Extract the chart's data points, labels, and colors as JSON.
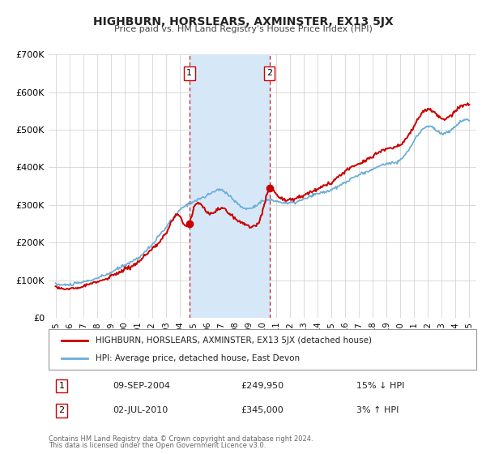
{
  "title": "HIGHBURN, HORSLEARS, AXMINSTER, EX13 5JX",
  "subtitle": "Price paid vs. HM Land Registry's House Price Index (HPI)",
  "legend_line1": "HIGHBURN, HORSLEARS, AXMINSTER, EX13 5JX (detached house)",
  "legend_line2": "HPI: Average price, detached house, East Devon",
  "footer1": "Contains HM Land Registry data © Crown copyright and database right 2024.",
  "footer2": "This data is licensed under the Open Government Licence v3.0.",
  "annotation1_label": "1",
  "annotation1_date": "09-SEP-2004",
  "annotation1_price": "£249,950",
  "annotation1_hpi": "15% ↓ HPI",
  "annotation2_label": "2",
  "annotation2_date": "02-JUL-2010",
  "annotation2_price": "£345,000",
  "annotation2_hpi": "3% ↑ HPI",
  "marker1_x": 2004.7,
  "marker1_y": 249950,
  "marker2_x": 2010.5,
  "marker2_y": 345000,
  "vline1_x": 2004.7,
  "vline2_x": 2010.5,
  "shade_x1": 2004.7,
  "shade_x2": 2010.5,
  "xlim": [
    1994.5,
    2025.5
  ],
  "ylim": [
    0,
    700000
  ],
  "yticks": [
    0,
    100000,
    200000,
    300000,
    400000,
    500000,
    600000,
    700000
  ],
  "ytick_labels": [
    "£0",
    "£100K",
    "£200K",
    "£300K",
    "£400K",
    "£500K",
    "£600K",
    "£700K"
  ],
  "xticks": [
    1995,
    1996,
    1997,
    1998,
    1999,
    2000,
    2001,
    2002,
    2003,
    2004,
    2005,
    2006,
    2007,
    2008,
    2009,
    2010,
    2011,
    2012,
    2013,
    2014,
    2015,
    2016,
    2017,
    2018,
    2019,
    2020,
    2021,
    2022,
    2023,
    2024,
    2025
  ],
  "red_color": "#cc0000",
  "blue_color": "#6baed6",
  "shade_color": "#d6e8f7",
  "vline_color": "#cc0000",
  "bg_color": "#ffffff",
  "grid_color": "#cccccc"
}
